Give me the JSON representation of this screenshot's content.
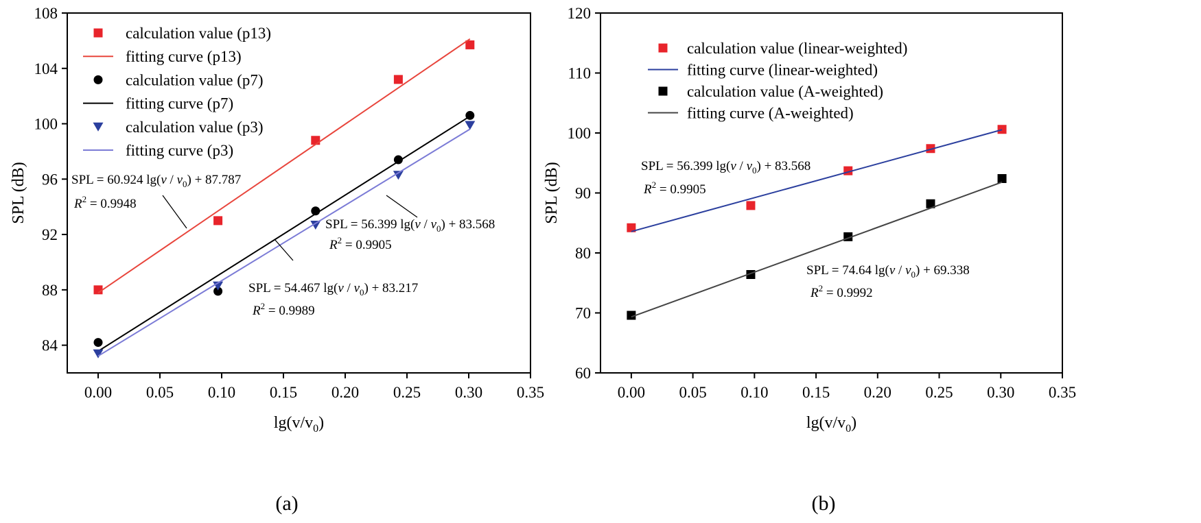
{
  "chart_data": [
    {
      "type": "scatter",
      "panel_label": "(a)",
      "xlabel": "lg(v/v",
      "xlabel_sub": "0",
      "xlabel_close": ")",
      "ylabel": "SPL (dB)",
      "xlim": [
        -0.025,
        0.35
      ],
      "ylim": [
        82,
        108
      ],
      "xticks": [
        0.0,
        0.05,
        0.1,
        0.15,
        0.2,
        0.25,
        0.3,
        0.35
      ],
      "xtick_labels": [
        "0.00",
        "0.05",
        "0.10",
        "0.15",
        "0.20",
        "0.25",
        "0.30",
        "0.35"
      ],
      "yticks": [
        84,
        88,
        92,
        96,
        100,
        104,
        108
      ],
      "ytick_labels": [
        "84",
        "88",
        "92",
        "96",
        "100",
        "104",
        "108"
      ],
      "grid": false,
      "legend_position": "top-left",
      "series": [
        {
          "name": "calculation value (p13)",
          "marker": "square",
          "color": "#e8242b",
          "x": [
            0,
            0.097,
            0.176,
            0.243,
            0.301
          ],
          "y": [
            88.0,
            93.0,
            98.8,
            103.2,
            105.7
          ]
        },
        {
          "name": "fitting curve (p13)",
          "kind": "line",
          "color": "#e8453c",
          "slope": 60.924,
          "intercept": 87.787,
          "x_range": [
            0,
            0.301
          ]
        },
        {
          "name": "calculation value (p7)",
          "marker": "circle",
          "color": "#000000",
          "x": [
            0,
            0.097,
            0.176,
            0.243,
            0.301
          ],
          "y": [
            84.2,
            87.9,
            93.7,
            97.4,
            100.6
          ]
        },
        {
          "name": "fitting curve (p7)",
          "kind": "line",
          "color": "#000000",
          "slope": 56.399,
          "intercept": 83.568,
          "x_range": [
            0,
            0.301
          ]
        },
        {
          "name": "calculation value (p3)",
          "marker": "triangle-down",
          "color": "#2b3f9e",
          "x": [
            0,
            0.097,
            0.176,
            0.243,
            0.301
          ],
          "y": [
            83.4,
            88.3,
            92.7,
            96.3,
            99.9
          ]
        },
        {
          "name": "fitting curve (p3)",
          "kind": "line",
          "color": "#7b7bd6",
          "slope": 54.467,
          "intercept": 83.217,
          "x_range": [
            0,
            0.301
          ]
        }
      ],
      "annotations": [
        {
          "eq_prefix": "SPL = 60.924 lg(",
          "eq_suffix": ") + 87.787",
          "r2": " = 0.9948"
        },
        {
          "eq_prefix": "SPL = 56.399 lg(",
          "eq_suffix": ") + 83.568",
          "r2": " = 0.9905"
        },
        {
          "eq_prefix": "SPL = 54.467 lg(",
          "eq_suffix": ") + 83.217",
          "r2": " = 0.9989"
        }
      ]
    },
    {
      "type": "scatter",
      "panel_label": "(b)",
      "xlabel": "lg(v/v",
      "xlabel_sub": "0",
      "xlabel_close": ")",
      "ylabel": "SPL (dB)",
      "xlim": [
        -0.025,
        0.35
      ],
      "ylim": [
        60,
        120
      ],
      "xticks": [
        0.0,
        0.05,
        0.1,
        0.15,
        0.2,
        0.25,
        0.3,
        0.35
      ],
      "xtick_labels": [
        "0.00",
        "0.05",
        "0.10",
        "0.15",
        "0.20",
        "0.25",
        "0.30",
        "0.35"
      ],
      "yticks": [
        60,
        70,
        80,
        90,
        100,
        110,
        120
      ],
      "ytick_labels": [
        "60",
        "70",
        "80",
        "90",
        "100",
        "110",
        "120"
      ],
      "grid": false,
      "legend_position": "top-left",
      "series": [
        {
          "name": "calculation value (linear-weighted)",
          "marker": "square",
          "color": "#e8242b",
          "x": [
            0,
            0.097,
            0.176,
            0.243,
            0.301
          ],
          "y": [
            84.2,
            87.9,
            93.7,
            97.4,
            100.6
          ]
        },
        {
          "name": "fitting curve (linear-weighted)",
          "kind": "line",
          "color": "#2b3f9e",
          "slope": 56.399,
          "intercept": 83.568,
          "x_range": [
            0,
            0.301
          ]
        },
        {
          "name": "calculation value (A-weighted)",
          "marker": "square",
          "color": "#000000",
          "x": [
            0,
            0.097,
            0.176,
            0.243,
            0.301
          ],
          "y": [
            69.6,
            76.4,
            82.7,
            88.2,
            92.4
          ]
        },
        {
          "name": "fitting curve (A-weighted)",
          "kind": "line",
          "color": "#444444",
          "slope": 74.64,
          "intercept": 69.338,
          "x_range": [
            0,
            0.301
          ]
        }
      ],
      "annotations": [
        {
          "eq_prefix": "SPL = 56.399 lg(",
          "eq_suffix": ") + 83.568",
          "r2": " = 0.9905"
        },
        {
          "eq_prefix": "SPL = 74.64 lg(",
          "eq_suffix": ") + 69.338",
          "r2": " = 0.9992"
        }
      ]
    }
  ]
}
